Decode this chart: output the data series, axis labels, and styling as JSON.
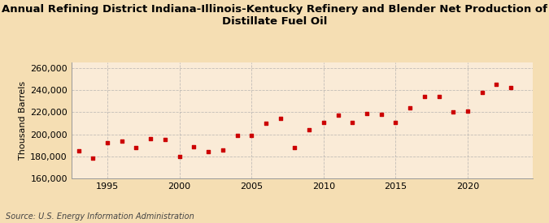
{
  "title": "Annual Refining District Indiana-Illinois-Kentucky Refinery and Blender Net Production of\nDistillate Fuel Oil",
  "ylabel": "Thousand Barrels",
  "source": "Source: U.S. Energy Information Administration",
  "background_color": "#f5deb3",
  "plot_bg_color": "#faebd7",
  "marker_color": "#cc0000",
  "years": [
    1993,
    1994,
    1995,
    1996,
    1997,
    1998,
    1999,
    2000,
    2001,
    2002,
    2003,
    2004,
    2005,
    2006,
    2007,
    2008,
    2009,
    2010,
    2011,
    2012,
    2013,
    2014,
    2015,
    2016,
    2017,
    2018,
    2019,
    2020,
    2021,
    2022,
    2023
  ],
  "values": [
    185000,
    178000,
    192000,
    194000,
    188000,
    196000,
    195000,
    180000,
    189000,
    184000,
    186000,
    199000,
    199000,
    210000,
    214000,
    188000,
    204000,
    211000,
    217000,
    211000,
    219000,
    218000,
    211000,
    224000,
    234000,
    234000,
    220000,
    221000,
    238000,
    245000,
    242000
  ],
  "ylim": [
    160000,
    265000
  ],
  "yticks": [
    160000,
    180000,
    200000,
    220000,
    240000,
    260000
  ],
  "xlim": [
    1992.5,
    2024.5
  ],
  "xticks": [
    1995,
    2000,
    2005,
    2010,
    2015,
    2020
  ],
  "grid_color": "#aaaaaa",
  "grid_linestyle": "--",
  "title_fontsize": 9.5,
  "tick_fontsize": 8,
  "ylabel_fontsize": 8,
  "source_fontsize": 7
}
